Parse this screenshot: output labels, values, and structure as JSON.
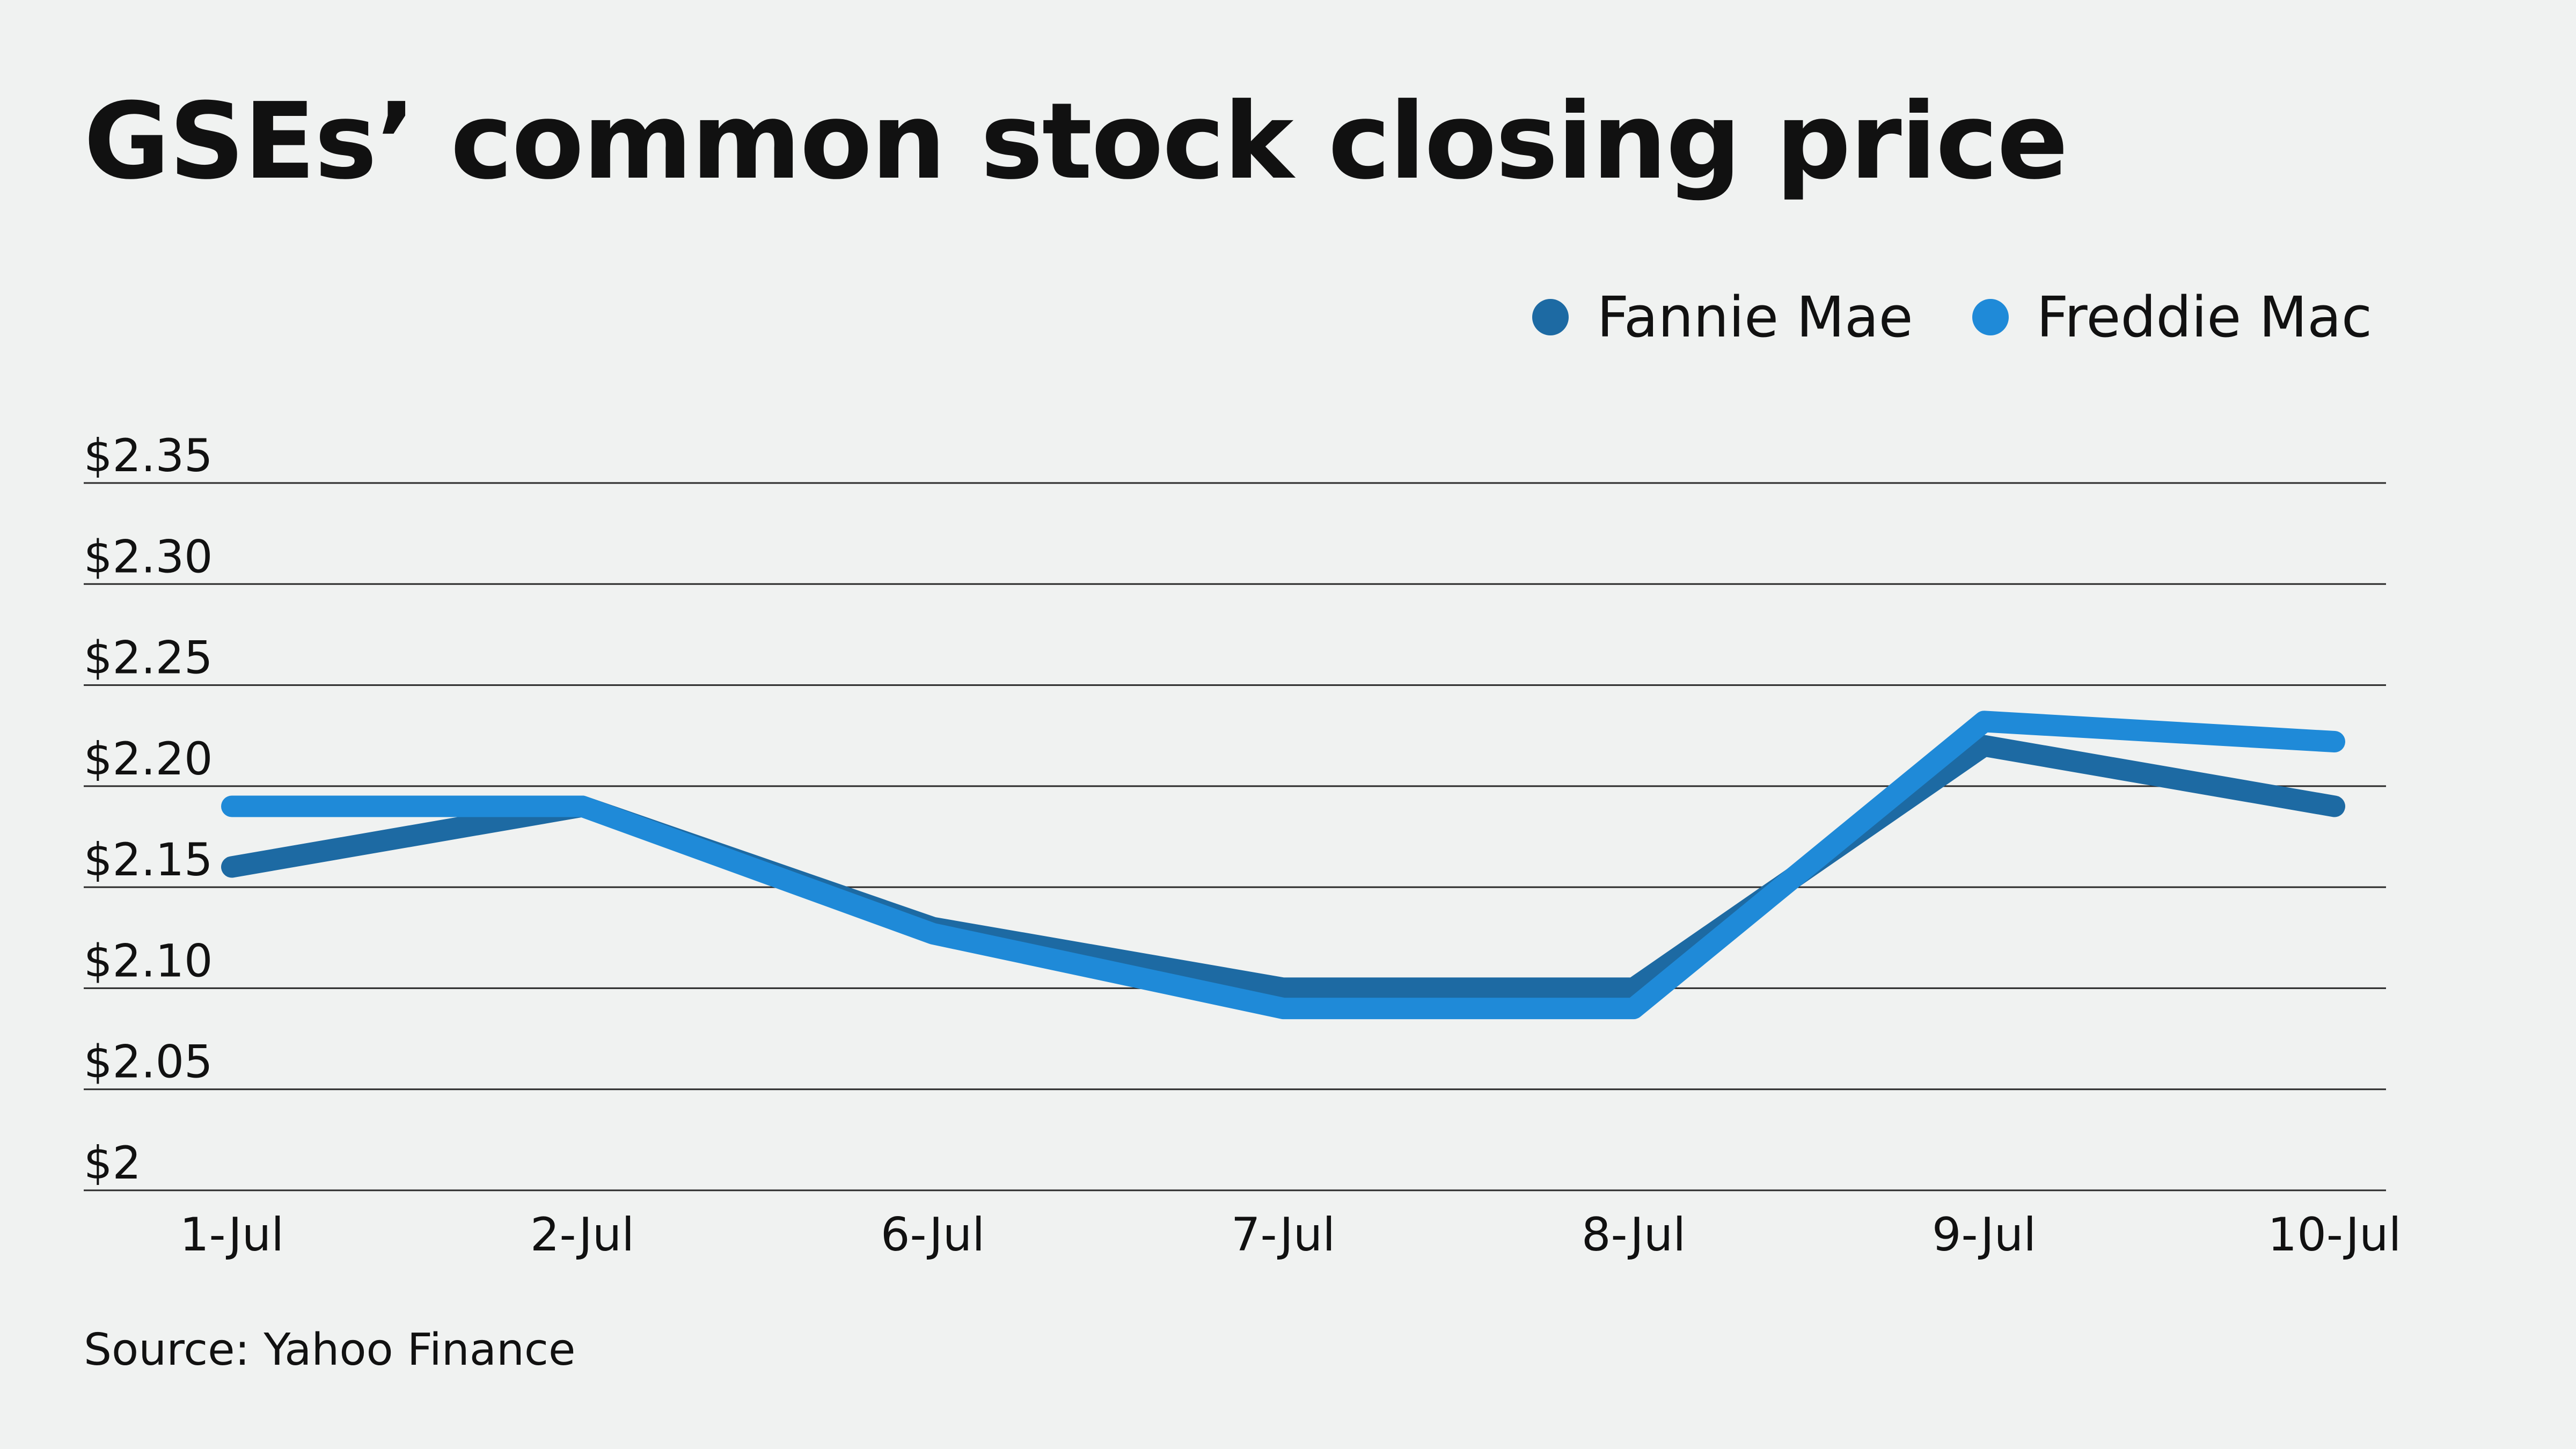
{
  "chart_data": {
    "type": "line",
    "title": "GSEs’ common stock closing price",
    "categories": [
      "1-Jul",
      "2-Jul",
      "6-Jul",
      "7-Jul",
      "8-Jul",
      "9-Jul",
      "10-Jul"
    ],
    "series": [
      {
        "name": "Fannie Mae",
        "color": "#1d6aa3",
        "values": [
          2.16,
          2.19,
          2.13,
          2.1,
          2.1,
          2.22,
          2.19
        ]
      },
      {
        "name": "Freddie Mac",
        "color": "#1f8ad8",
        "values": [
          2.19,
          2.19,
          2.127,
          2.09,
          2.09,
          2.232,
          2.222
        ]
      }
    ],
    "ylim": [
      2.0,
      2.35
    ],
    "y_ticks": [
      {
        "value": 2.35,
        "label": "$2.35"
      },
      {
        "value": 2.3,
        "label": "$2.30"
      },
      {
        "value": 2.25,
        "label": "$2.25"
      },
      {
        "value": 2.2,
        "label": "$2.20"
      },
      {
        "value": 2.15,
        "label": "$2.15"
      },
      {
        "value": 2.1,
        "label": "$2.10"
      },
      {
        "value": 2.05,
        "label": "$2.05"
      },
      {
        "value": 2.0,
        "label": "$2"
      }
    ],
    "grid": true,
    "legend_position": "top-right",
    "source": "Source: Yahoo Finance"
  }
}
